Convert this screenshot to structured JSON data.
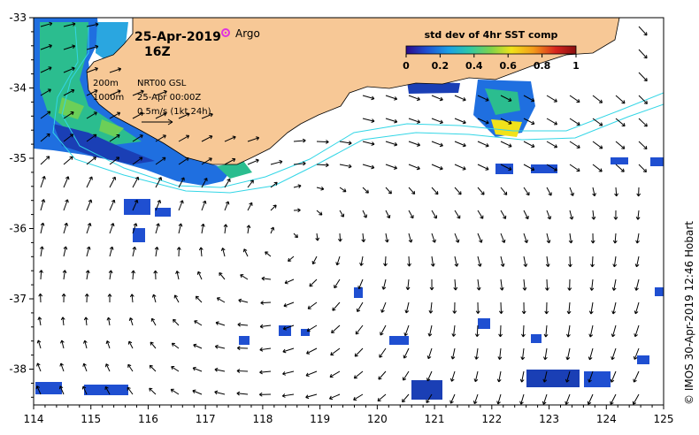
{
  "map": {
    "date": "25-Apr-2019",
    "time": "16Z",
    "argo_label": "Argo",
    "legend": {
      "title": "std dev of 4hr SST comp",
      "ticks": [
        "0",
        "0.2",
        "0.4",
        "0.6",
        "0.8",
        "1"
      ],
      "colorscale": [
        "#2b0a8a",
        "#1f4fd1",
        "#1aa0e6",
        "#2ec7a8",
        "#7fd34a",
        "#f1e21a",
        "#f39b1b",
        "#d8261e",
        "#8a0f10"
      ]
    },
    "annotations": {
      "depth_200": "200m",
      "depth_1000": "1000m",
      "product": "NRT00 GSL",
      "product_time": "25-Apr 00:00Z",
      "vector_scale": "0.5m/s (1kt 24h)"
    },
    "x_axis": {
      "ticks": [
        "114",
        "115",
        "116",
        "117",
        "118",
        "119",
        "120",
        "121",
        "122",
        "123",
        "124",
        "125"
      ]
    },
    "y_axis": {
      "ticks": [
        "-33",
        "-34",
        "-35",
        "-36",
        "-37",
        "-38"
      ]
    },
    "credit": "© IMOS 30-Apr-2019 12:46 Hobart",
    "colors": {
      "land": "#f7c896",
      "isobath": "#33d6e6",
      "arrow": "#000000",
      "argo": "#e033e0"
    }
  }
}
